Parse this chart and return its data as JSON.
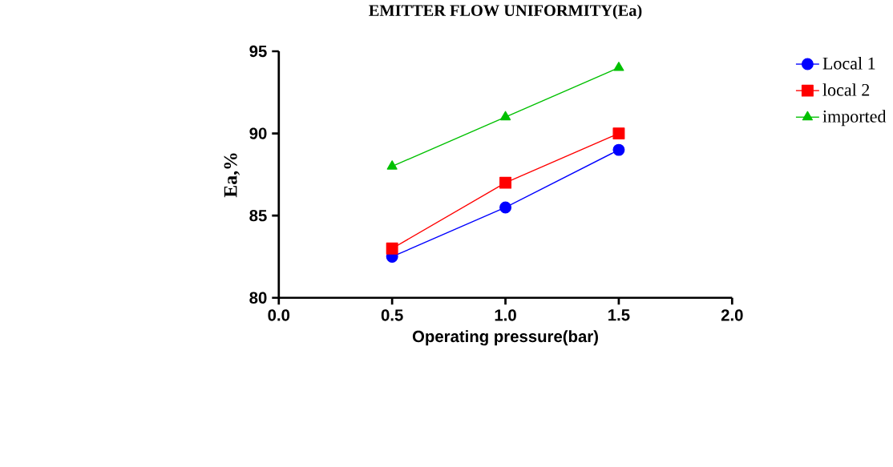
{
  "chart_data": {
    "type": "line",
    "title": "EMITTER FLOW UNIFORMITY(Ea)",
    "xlabel": "Operating pressure(bar)",
    "ylabel": "Ea,%",
    "x": [
      0.5,
      1.0,
      1.5
    ],
    "series": [
      {
        "name": "Local 1",
        "color": "#0000ff",
        "marker": "circle",
        "values": [
          82.5,
          85.5,
          89
        ]
      },
      {
        "name": "local 2",
        "color": "#ff0000",
        "marker": "square",
        "values": [
          83,
          87,
          90
        ]
      },
      {
        "name": "imported",
        "color": "#00c000",
        "marker": "triangle",
        "values": [
          88,
          91,
          94
        ]
      }
    ],
    "xlim": [
      0,
      2
    ],
    "xticks": [
      {
        "value": 0,
        "label": "0.0"
      },
      {
        "value": 0.5,
        "label": "0.5"
      },
      {
        "value": 1,
        "label": "1.0"
      },
      {
        "value": 1.5,
        "label": "1.5"
      },
      {
        "value": 2,
        "label": "2.0"
      }
    ],
    "ylim": [
      80,
      95
    ],
    "yticks": [
      80,
      85,
      90,
      95
    ],
    "grid": false,
    "legend": "top right",
    "line_style": "solid"
  }
}
